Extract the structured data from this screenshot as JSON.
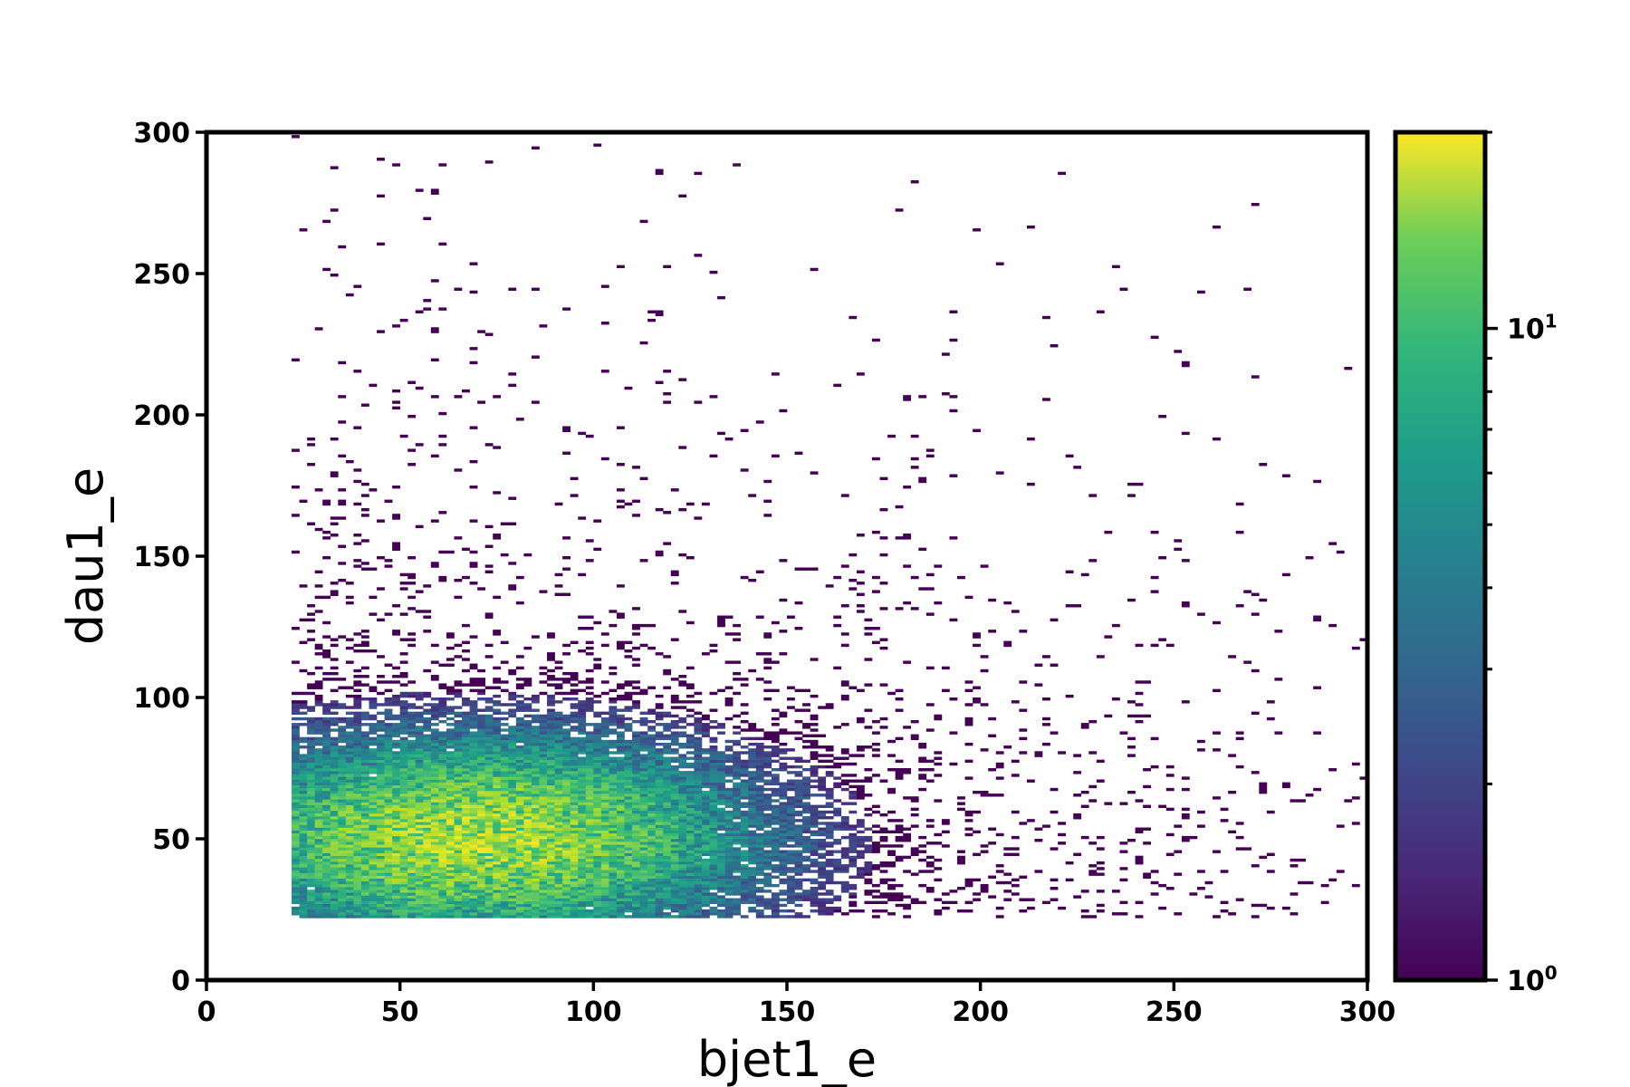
{
  "chart_data": {
    "type": "heatmap",
    "title": "",
    "xlabel": "bjet1_e",
    "ylabel": "dau1_e",
    "xlim": [
      0,
      300
    ],
    "ylim": [
      0,
      300
    ],
    "x_ticks": [
      0,
      50,
      100,
      150,
      200,
      250,
      300
    ],
    "y_ticks": [
      0,
      50,
      100,
      150,
      200,
      250,
      300
    ],
    "x_tick_labels": [
      "0",
      "50",
      "100",
      "150",
      "200",
      "250",
      "300"
    ],
    "y_tick_labels": [
      "0",
      "50",
      "100",
      "150",
      "200",
      "250",
      "300"
    ],
    "bins": {
      "nx": 150,
      "ny": 300,
      "x_range": [
        0,
        300
      ],
      "y_range": [
        0,
        300
      ]
    },
    "colormap": "viridis",
    "colorbar": {
      "scale": "log",
      "range": [
        1,
        20
      ],
      "major_tick_labels": [
        {
          "value": 1,
          "base": "10",
          "exp": "0"
        },
        {
          "value": 10,
          "base": "10",
          "exp": "1"
        }
      ],
      "minor_ticks": [
        2,
        3,
        4,
        5,
        6,
        7,
        8,
        9,
        20
      ]
    },
    "density": {
      "description_of_distribution": "events concentrated at bjet1_e 40-110, dau1_e 30-80; sparse tail out to 300",
      "peak": {
        "x": 70,
        "y": 50,
        "count": 14
      },
      "x_min_populated": 22,
      "y_min_populated": 22
    }
  }
}
